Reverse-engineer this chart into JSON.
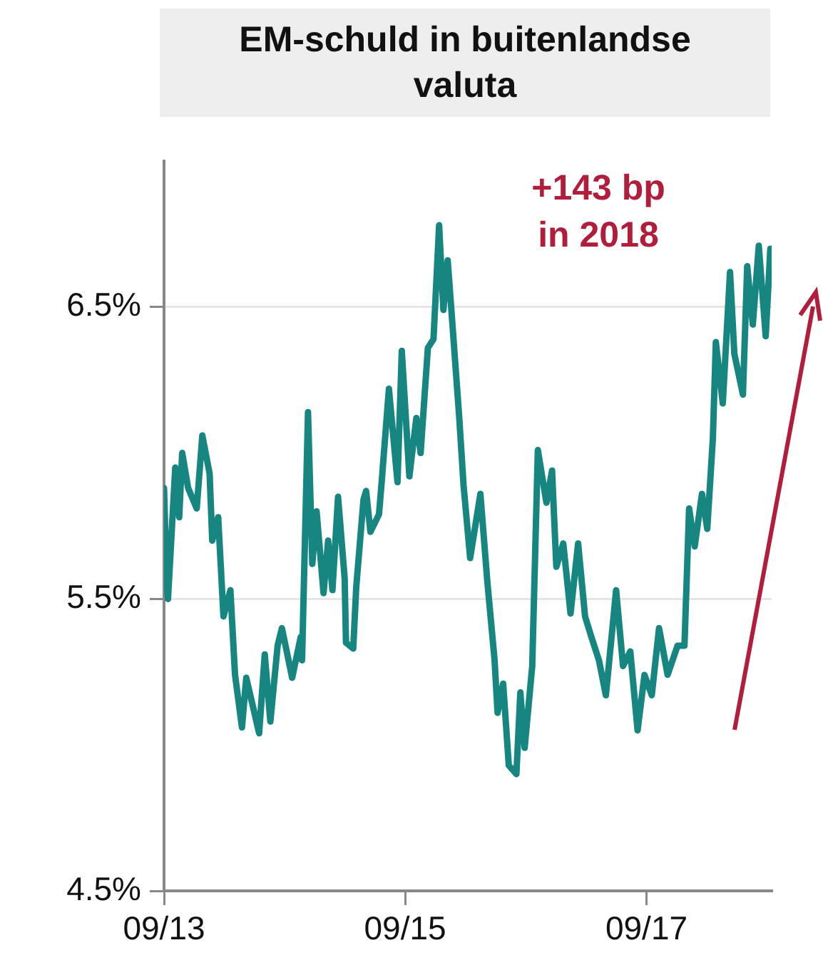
{
  "chart_data": {
    "type": "line",
    "title": "EM-schuld in buitenlandse valuta",
    "annotations": [
      "+143 bp\nin 2018"
    ],
    "x": [
      "2013-09-01",
      "2013-09-09",
      "2013-09-13",
      "2013-10-05",
      "2013-10-17",
      "2013-10-26",
      "2013-11-13",
      "2013-12-09",
      "2013-12-26",
      "2014-01-17",
      "2014-01-25",
      "2014-02-12",
      "2014-02-28",
      "2014-03-21",
      "2014-04-04",
      "2014-04-25",
      "2014-05-08",
      "2014-06-16",
      "2014-07-03",
      "2014-07-20",
      "2014-08-11",
      "2014-08-24",
      "2014-09-24",
      "2014-10-20",
      "2014-10-24",
      "2014-11-11",
      "2014-11-24",
      "2014-12-07",
      "2014-12-28",
      "2015-01-11",
      "2015-01-24",
      "2015-02-10",
      "2015-03-02",
      "2015-03-06",
      "2015-03-28",
      "2015-04-06",
      "2015-04-28",
      "2015-05-06",
      "2015-05-19",
      "2015-06-14",
      "2015-06-22",
      "2015-07-14",
      "2015-08-09",
      "2015-08-22",
      "2015-09-14",
      "2015-10-05",
      "2015-10-18",
      "2015-11-09",
      "2015-11-26",
      "2015-12-13",
      "2015-12-26",
      "2016-01-08",
      "2016-01-25",
      "2016-02-12",
      "2016-02-25",
      "2016-03-16",
      "2016-04-16",
      "2016-05-07",
      "2016-05-29",
      "2016-06-07",
      "2016-06-24",
      "2016-07-11",
      "2016-08-03",
      "2016-08-15",
      "2016-08-28",
      "2016-09-20",
      "2016-10-07",
      "2016-11-02",
      "2016-11-19",
      "2016-12-02",
      "2016-12-23",
      "2017-01-14",
      "2017-02-06",
      "2017-02-27",
      "2017-03-18",
      "2017-04-10",
      "2017-05-01",
      "2017-06-01",
      "2017-06-22",
      "2017-07-14",
      "2017-08-05",
      "2017-08-26",
      "2017-09-17",
      "2017-10-09",
      "2017-11-04",
      "2017-12-04",
      "2017-12-25",
      "2018-01-08",
      "2018-01-25",
      "2018-02-16",
      "2018-03-04",
      "2018-03-21",
      "2018-03-30",
      "2018-04-20",
      "2018-05-12",
      "2018-05-25",
      "2018-06-20",
      "2018-07-03",
      "2018-07-20",
      "2018-08-07",
      "2018-08-28",
      "2018-09-11"
    ],
    "series": [
      {
        "color": "#178580",
        "values": [
          5.88,
          5.56,
          5.5,
          5.95,
          5.78,
          6.0,
          5.88,
          5.81,
          6.06,
          5.93,
          5.7,
          5.78,
          5.44,
          5.53,
          5.24,
          5.06,
          5.23,
          5.04,
          5.31,
          5.08,
          5.34,
          5.4,
          5.23,
          5.37,
          5.29,
          6.14,
          5.62,
          5.8,
          5.52,
          5.7,
          5.53,
          5.85,
          5.57,
          5.35,
          5.33,
          5.54,
          5.84,
          5.87,
          5.73,
          5.79,
          5.9,
          6.22,
          5.9,
          6.35,
          5.92,
          6.12,
          6.0,
          6.36,
          6.39,
          6.78,
          6.49,
          6.66,
          6.4,
          6.12,
          5.89,
          5.64,
          5.86,
          5.56,
          5.29,
          5.11,
          5.21,
          4.93,
          4.9,
          5.18,
          4.99,
          5.27,
          6.01,
          5.83,
          5.94,
          5.61,
          5.69,
          5.45,
          5.69,
          5.44,
          5.37,
          5.29,
          5.17,
          5.53,
          5.27,
          5.32,
          5.05,
          5.24,
          5.17,
          5.4,
          5.24,
          5.34,
          5.34,
          5.81,
          5.68,
          5.86,
          5.74,
          6.05,
          6.38,
          6.17,
          6.62,
          6.34,
          6.2,
          6.64,
          6.44,
          6.71,
          6.4,
          6.7
        ]
      }
    ],
    "xlim": [
      "2013-09-01",
      "2018-09-15"
    ],
    "xticks": [
      {
        "value": "2013-09-01",
        "label": "09/13"
      },
      {
        "value": "2015-09-01",
        "label": "09/15"
      },
      {
        "value": "2017-09-01",
        "label": "09/17"
      }
    ],
    "ylim": [
      4.5,
      7.0
    ],
    "yticks": [
      {
        "value": 4.5,
        "label": "4.5%"
      },
      {
        "value": 5.5,
        "label": "5.5%"
      },
      {
        "value": 6.5,
        "label": "6.5%"
      }
    ],
    "grid": "y"
  }
}
